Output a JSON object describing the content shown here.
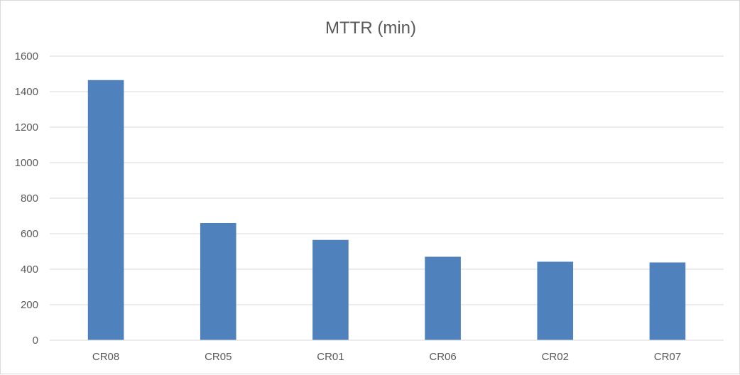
{
  "chart_data": {
    "type": "bar",
    "title": "MTTR  (min)",
    "categories": [
      "CR08",
      "CR05",
      "CR01",
      "CR06",
      "CR02",
      "CR07"
    ],
    "values": [
      1465,
      660,
      565,
      470,
      442,
      438
    ],
    "ylim": [
      0,
      1600
    ],
    "yticks": [
      "0",
      "200",
      "400",
      "600",
      "800",
      "1000",
      "1200",
      "1400",
      "1600"
    ],
    "grid": true,
    "legend": "none",
    "colors": {
      "bar": "#4F81BD"
    }
  }
}
